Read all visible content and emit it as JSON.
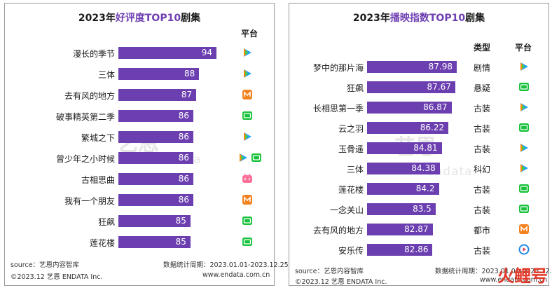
{
  "left": {
    "title_prefix": "2023年",
    "title_accent": "好评度TOP10",
    "title_suffix": "剧集",
    "platform_header": "平台",
    "source": "source：艺恩内容智库",
    "period": "数据统计周期：2023.01.01-2023.12.25",
    "copyright": "©2023.12 艺恩 ENDATA Inc.",
    "site": "www.endata.com.cn",
    "watermark": "艺恩",
    "watermark_sub": "endata",
    "rows": [
      {
        "label": "漫长的季节",
        "value": "94",
        "platforms": [
          "tencent"
        ]
      },
      {
        "label": "三体",
        "value": "88",
        "platforms": [
          "tencent"
        ]
      },
      {
        "label": "去有风的地方",
        "value": "87",
        "platforms": [
          "mango"
        ]
      },
      {
        "label": "破事精英第二季",
        "value": "86",
        "platforms": [
          "iqiyi"
        ]
      },
      {
        "label": "繁城之下",
        "value": "86",
        "platforms": [
          "tencent"
        ]
      },
      {
        "label": "曾少年之小时候",
        "value": "86",
        "platforms": [
          "tencent",
          "iqiyi"
        ]
      },
      {
        "label": "古相思曲",
        "value": "86",
        "platforms": [
          "bilibili"
        ]
      },
      {
        "label": "我有一个朋友",
        "value": "86",
        "platforms": [
          "mango"
        ]
      },
      {
        "label": "狂飙",
        "value": "85",
        "platforms": [
          "iqiyi"
        ]
      },
      {
        "label": "莲花楼",
        "value": "85",
        "platforms": [
          "iqiyi"
        ]
      }
    ]
  },
  "right": {
    "title_prefix": "2023年",
    "title_accent": "播映指数TOP10",
    "title_suffix": "剧集",
    "type_header": "类型",
    "platform_header": "平台",
    "source": "source：艺恩内容智库",
    "period": "数据统计周期：2023.01.01-2023.12.25",
    "copyright": "©2023.12 艺恩 ENDATA Inc.",
    "site": "www.endata.com.cn",
    "watermark": "艺恩",
    "watermark_sub": "endata",
    "rows": [
      {
        "label": "梦中的那片海",
        "value": "87.98",
        "type": "剧情",
        "platforms": [
          "tencent"
        ]
      },
      {
        "label": "狂飙",
        "value": "87.67",
        "type": "悬疑",
        "platforms": [
          "iqiyi"
        ]
      },
      {
        "label": "长相思第一季",
        "value": "86.87",
        "type": "古装",
        "platforms": [
          "tencent"
        ]
      },
      {
        "label": "云之羽",
        "value": "86.22",
        "type": "古装",
        "platforms": [
          "iqiyi"
        ]
      },
      {
        "label": "玉骨遥",
        "value": "84.81",
        "type": "古装",
        "platforms": [
          "tencent"
        ]
      },
      {
        "label": "三体",
        "value": "84.38",
        "type": "科幻",
        "platforms": [
          "tencent"
        ]
      },
      {
        "label": "莲花楼",
        "value": "84.2",
        "type": "古装",
        "platforms": [
          "iqiyi"
        ]
      },
      {
        "label": "一念关山",
        "value": "83.5",
        "type": "古装",
        "platforms": [
          "iqiyi"
        ]
      },
      {
        "label": "去有风的地方",
        "value": "82.87",
        "type": "都市",
        "platforms": [
          "mango"
        ]
      },
      {
        "label": "安乐传",
        "value": "82.86",
        "type": "古装",
        "platforms": [
          "youku"
        ]
      }
    ]
  },
  "chart_data": [
    {
      "type": "bar",
      "title": "2023年好评度TOP10剧集",
      "orientation": "horizontal",
      "categories": [
        "漫长的季节",
        "三体",
        "去有风的地方",
        "破事精英第二季",
        "繁城之下",
        "曾少年之小时候",
        "古相思曲",
        "我有一个朋友",
        "狂飙",
        "莲花楼"
      ],
      "values": [
        94,
        88,
        87,
        86,
        86,
        86,
        86,
        86,
        85,
        85
      ]
    },
    {
      "type": "bar",
      "title": "2023年播映指数TOP10剧集",
      "orientation": "horizontal",
      "categories": [
        "梦中的那片海",
        "狂飙",
        "长相思第一季",
        "云之羽",
        "玉骨遥",
        "三体",
        "莲花楼",
        "一念关山",
        "去有风的地方",
        "安乐传"
      ],
      "values": [
        87.98,
        87.67,
        86.87,
        86.22,
        84.81,
        84.38,
        84.2,
        83.5,
        82.87,
        82.86
      ]
    }
  ],
  "brand": "火鲤号",
  "colors": {
    "bar": "#6b3fb0",
    "accent": "#6e3fb2"
  }
}
